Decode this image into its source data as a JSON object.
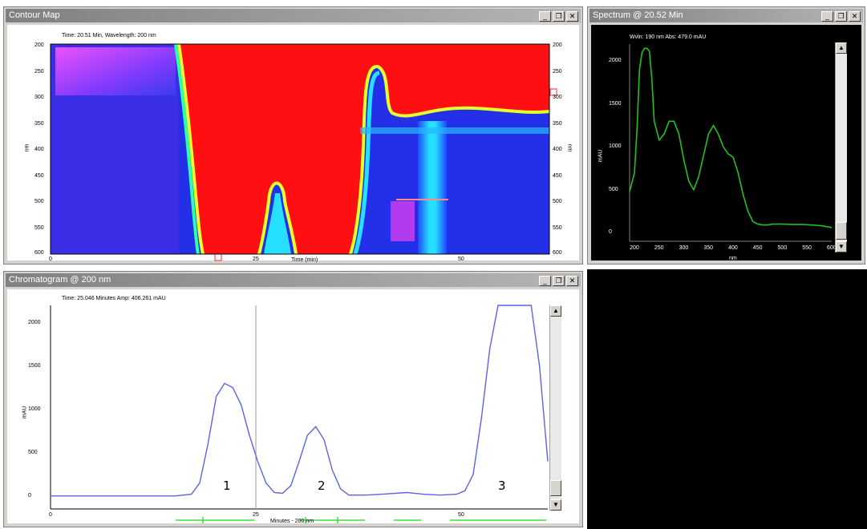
{
  "contour": {
    "title": "Contour Map",
    "info": "Time: 20.51 Min, Wavelength: 200 nm",
    "y_ticks": [
      "200",
      "250",
      "300",
      "350",
      "400",
      "450",
      "500",
      "550",
      "600"
    ],
    "x_ticks": [
      "0",
      "25",
      "50"
    ],
    "x_label": "Time (min)",
    "y_label": "nm"
  },
  "spectrum": {
    "title": "Spectrum @ 20.52 Min",
    "info": "Wvln: 190 nm  Abs: 479.0 mAU",
    "y_ticks": [
      "2000",
      "1500",
      "1000",
      "500",
      "0"
    ],
    "x_ticks": [
      "200",
      "250",
      "300",
      "350",
      "400",
      "450",
      "500",
      "550",
      "600"
    ],
    "x_label": "nm",
    "y_label": "mAU"
  },
  "chromatogram": {
    "title": "Chromatogram @ 200 nm",
    "info": "Time: 25.046 Minutes  Amp: 406.261 mAU",
    "y_ticks": [
      "2000",
      "1500",
      "1000",
      "500",
      "0"
    ],
    "x_ticks": [
      "0",
      "25",
      "50"
    ],
    "x_label": "Minutes - 200 nm",
    "y_label": "mAU",
    "peaks": [
      "1",
      "2",
      "3"
    ]
  },
  "window_buttons": {
    "minimize": "_",
    "restore": "❐",
    "close": "✕"
  },
  "colors": {
    "spectrum_trace": "#22c11e",
    "chromatogram_trace": "#5b63e6",
    "baseline_marks": "#3ee03a",
    "cursor": "#9a9a9a"
  },
  "chart_data": [
    {
      "type": "line",
      "title": "Spectrum @ 20.52 Min",
      "xlabel": "nm",
      "ylabel": "mAU",
      "xlim": [
        190,
        600
      ],
      "ylim": [
        -100,
        2200
      ],
      "series": [
        {
          "x": [
            190,
            200,
            205,
            210,
            215,
            220,
            225,
            230,
            235,
            240,
            250,
            260,
            270,
            280,
            290,
            300,
            310,
            320,
            330,
            340,
            350,
            360,
            370,
            380,
            390,
            400,
            410,
            420,
            430,
            440,
            450,
            460,
            470,
            480,
            500,
            520,
            540,
            560,
            580,
            600
          ],
          "values": [
            479,
            700,
            1200,
            1900,
            2100,
            2150,
            2150,
            2120,
            1800,
            1300,
            1080,
            1150,
            1300,
            1300,
            1150,
            850,
            600,
            500,
            650,
            900,
            1150,
            1250,
            1150,
            1000,
            920,
            880,
            700,
            450,
            250,
            130,
            100,
            90,
            90,
            100,
            100,
            95,
            95,
            90,
            80,
            60
          ]
        }
      ]
    },
    {
      "type": "line",
      "title": "Chromatogram @ 200 nm",
      "xlabel": "Minutes - 200 nm",
      "ylabel": "mAU",
      "xlim": [
        0,
        60
      ],
      "ylim": [
        -150,
        2200
      ],
      "series": [
        {
          "x": [
            0,
            5,
            10,
            15,
            17,
            18,
            19,
            20,
            21,
            22,
            23,
            24,
            25,
            26,
            27,
            28,
            29,
            30,
            31,
            32,
            33,
            34,
            35,
            36,
            38,
            40,
            43,
            45,
            47,
            49,
            50,
            51,
            52,
            53,
            54,
            55,
            56,
            57,
            58,
            59,
            60
          ],
          "values": [
            0,
            0,
            0,
            0,
            20,
            150,
            600,
            1150,
            1300,
            1250,
            1050,
            700,
            400,
            150,
            40,
            30,
            120,
            400,
            700,
            800,
            650,
            300,
            80,
            10,
            10,
            20,
            40,
            20,
            10,
            20,
            60,
            250,
            900,
            1700,
            2200,
            2200,
            2200,
            2200,
            2200,
            1500,
            400
          ]
        }
      ]
    }
  ]
}
